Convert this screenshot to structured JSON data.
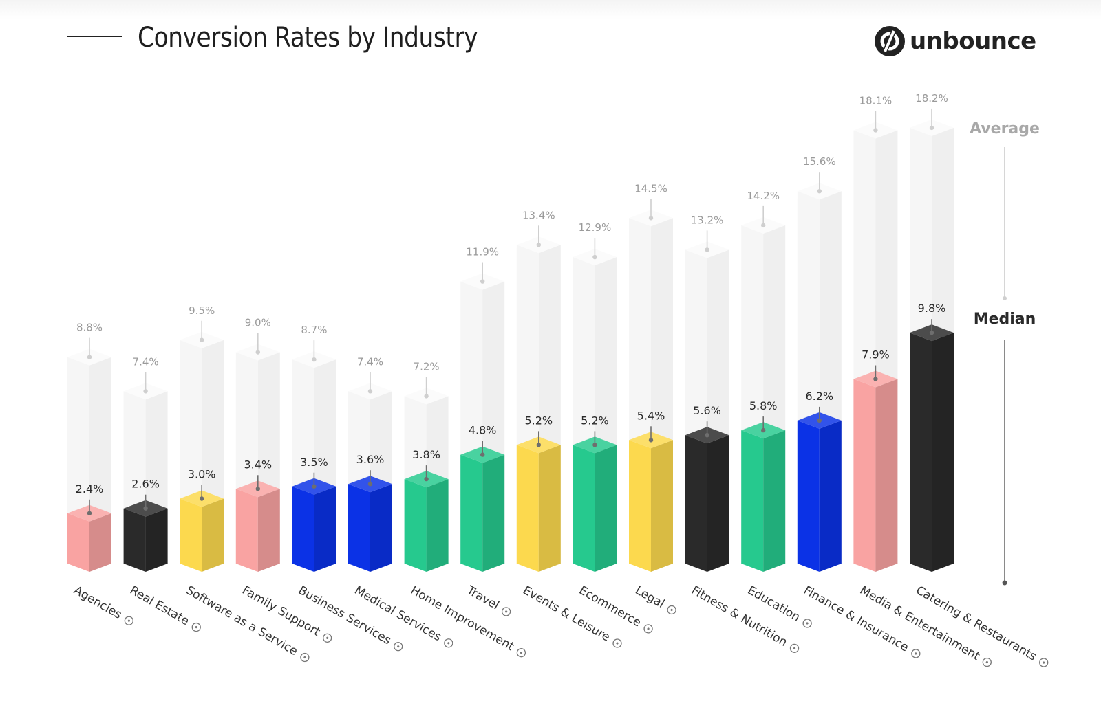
{
  "header": {
    "title": "Conversion Rates by Industry",
    "brand_name": "unbounce",
    "brand_icon": "unbounce-logo-icon"
  },
  "chart_data": {
    "type": "bar",
    "title": "Conversion Rates by Industry",
    "xlabel": "",
    "ylabel": "",
    "ylim": [
      0,
      20
    ],
    "grid": false,
    "categories": [
      "Agencies",
      "Real Estate",
      "Software as a Service",
      "Family Support",
      "Business Services",
      "Medical Services",
      "Home Improvement",
      "Travel",
      "Events & Leisure",
      "Ecommerce",
      "Legal",
      "Fitness & Nutrition",
      "Education",
      "Finance & Insurance",
      "Media & Entertainment",
      "Catering & Restaurants"
    ],
    "category_icons": [
      "megaphone-icon",
      "house-icon",
      "gear-icon",
      "family-icon",
      "handshake-icon",
      "stethoscope-icon",
      "eye-icon",
      "airplane-icon",
      "calendar-icon",
      "cart-icon",
      "gavel-icon",
      "footprints-icon",
      "book-icon",
      "dollar-icon",
      "play-icon",
      "cookie-icon"
    ],
    "series": [
      {
        "name": "Median",
        "values": [
          2.4,
          2.6,
          3.0,
          3.4,
          3.5,
          3.6,
          3.8,
          4.8,
          5.2,
          5.2,
          5.4,
          5.6,
          5.8,
          6.2,
          7.9,
          9.8
        ],
        "labels": [
          "2.4%",
          "2.6%",
          "3.0%",
          "3.4%",
          "3.5%",
          "3.6%",
          "3.8%",
          "4.8%",
          "5.2%",
          "5.2%",
          "5.4%",
          "5.6%",
          "5.8%",
          "6.2%",
          "7.9%",
          "9.8%"
        ]
      },
      {
        "name": "Average",
        "values": [
          8.8,
          7.4,
          9.5,
          9.0,
          8.7,
          7.4,
          7.2,
          11.9,
          13.4,
          12.9,
          14.5,
          13.2,
          14.2,
          15.6,
          18.1,
          18.2
        ],
        "labels": [
          "8.8%",
          "7.4%",
          "9.5%",
          "9.0%",
          "8.7%",
          "7.4%",
          "7.2%",
          "11.9%",
          "13.4%",
          "12.9%",
          "14.5%",
          "13.2%",
          "14.2%",
          "15.6%",
          "18.1%",
          "18.2%"
        ]
      }
    ],
    "bar_colors": [
      "#f9a3a2",
      "#2a2a2a",
      "#fcd94e",
      "#f9a3a2",
      "#0b32e6",
      "#0b32e6",
      "#26c98e",
      "#26c98e",
      "#fcd94e",
      "#26c98e",
      "#fcd94e",
      "#2a2a2a",
      "#26c98e",
      "#0b32e6",
      "#f9a3a2",
      "#2a2a2a"
    ],
    "legend": {
      "position": "right",
      "average_label": "Average",
      "median_label": "Median"
    },
    "colors": {
      "pink": "#f9a3a2",
      "black": "#2a2a2a",
      "yellow": "#fcd94e",
      "blue": "#0b32e6",
      "green": "#26c98e",
      "ghost": "#f3f3f3"
    }
  }
}
